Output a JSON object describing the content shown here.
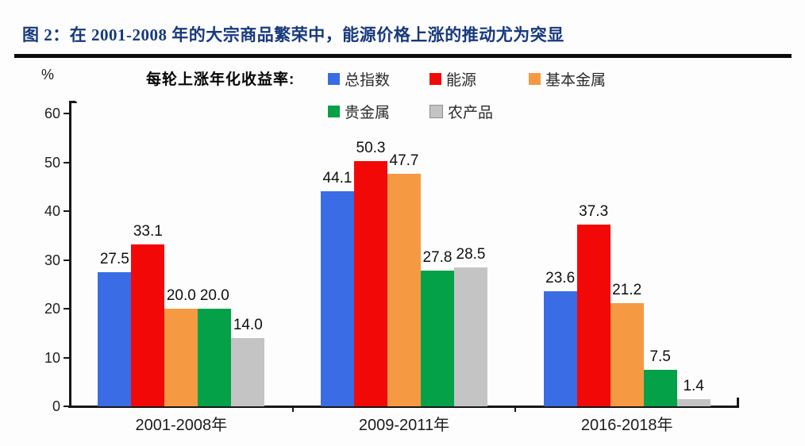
{
  "header": {
    "fig_title": "图 2：在 2001-2008 年的大宗商品繁荣中，能源价格上涨的推动尤为突显",
    "title_color": "#17397c",
    "rule_color": "#0b0b0b"
  },
  "chart_data": {
    "type": "bar",
    "note_label": "每轮上涨年化收益率:",
    "unit_label": "%",
    "categories": [
      "2001-2008年",
      "2009-2011年",
      "2016-2018年"
    ],
    "series": [
      {
        "name": "总指数",
        "color": "#3a6ce6",
        "values": [
          27.5,
          44.1,
          23.6
        ]
      },
      {
        "name": "能源",
        "color": "#f30808",
        "values": [
          33.1,
          50.3,
          37.3
        ]
      },
      {
        "name": "基本金属",
        "color": "#f59a42",
        "values": [
          20.0,
          47.7,
          21.2
        ]
      },
      {
        "name": "贵金属",
        "color": "#05a149",
        "values": [
          20.0,
          27.8,
          7.5
        ]
      },
      {
        "name": "农产品",
        "color": "#c4c4c4",
        "swatch_border": "#8f8f8f",
        "values": [
          14.0,
          28.5,
          1.4
        ]
      }
    ],
    "ylim": [
      0,
      60
    ],
    "yticks": [
      0,
      10,
      20,
      30,
      40,
      50,
      60
    ],
    "grid": false,
    "legend_position": "top",
    "value_labels": true,
    "axis_color": "#161616"
  }
}
